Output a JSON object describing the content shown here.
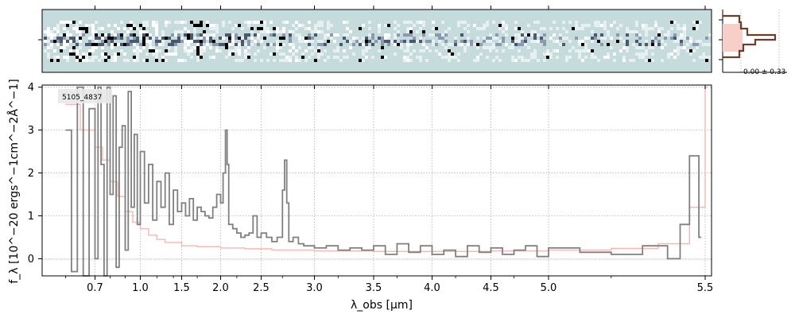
{
  "chart_data": [
    {
      "type": "heatmap",
      "panel": "2d-spectrum"
    },
    {
      "type": "line",
      "panel": "1d-spectrum",
      "annotation": "5105_4837",
      "xlabel": "λ_obs [μm]",
      "ylabel": "f_λ [10^−20 ergs^−1cm^−2Å^−1]",
      "xlim": [
        0.52,
        5.52
      ],
      "ylim": [
        -0.4,
        4.05
      ],
      "x_scale": "nonlinear",
      "x_ticks": [
        0.7,
        1.0,
        1.5,
        2.0,
        2.5,
        3.0,
        3.5,
        4.0,
        4.5,
        5.0,
        5.5
      ],
      "x_tick_labels": [
        "0.7",
        "1.0",
        "1.5",
        "2.0",
        "2.5",
        "3.0",
        "3.5",
        "4.0",
        "4.5",
        "5.0",
        "5.5"
      ],
      "y_ticks": [
        0,
        1,
        2,
        3,
        4
      ],
      "grid": true,
      "series": [
        {
          "role": "error",
          "color": "#f4b8b0",
          "x": [
            0.6,
            0.65,
            0.7,
            0.75,
            0.8,
            0.85,
            0.9,
            0.95,
            1.0,
            1.1,
            1.2,
            1.3,
            1.5,
            1.7,
            2.0,
            2.3,
            2.6,
            3.0,
            3.5,
            4.0,
            4.5,
            5.0,
            5.2,
            5.35,
            5.45,
            5.5
          ],
          "y": [
            3.6,
            3.0,
            2.6,
            2.3,
            1.8,
            1.45,
            1.1,
            0.85,
            0.7,
            0.55,
            0.45,
            0.38,
            0.3,
            0.28,
            0.25,
            0.23,
            0.2,
            0.18,
            0.17,
            0.17,
            0.18,
            0.2,
            0.24,
            0.35,
            1.2,
            4.0
          ]
        },
        {
          "role": "flux",
          "color": "#808080",
          "x": [
            0.6,
            0.62,
            0.64,
            0.66,
            0.68,
            0.7,
            0.72,
            0.74,
            0.76,
            0.78,
            0.8,
            0.82,
            0.84,
            0.86,
            0.88,
            0.9,
            0.92,
            0.94,
            0.96,
            0.98,
            1.0,
            1.05,
            1.1,
            1.15,
            1.2,
            1.25,
            1.3,
            1.35,
            1.4,
            1.45,
            1.5,
            1.55,
            1.6,
            1.65,
            1.7,
            1.75,
            1.8,
            1.85,
            1.9,
            1.95,
            2.0,
            2.03,
            2.06,
            2.08,
            2.1,
            2.15,
            2.2,
            2.25,
            2.3,
            2.35,
            2.4,
            2.45,
            2.5,
            2.55,
            2.6,
            2.65,
            2.7,
            2.72,
            2.74,
            2.76,
            2.8,
            2.85,
            2.9,
            3.0,
            3.1,
            3.2,
            3.3,
            3.4,
            3.5,
            3.6,
            3.7,
            3.8,
            3.9,
            4.0,
            4.1,
            4.2,
            4.3,
            4.4,
            4.5,
            4.6,
            4.7,
            4.8,
            4.9,
            5.0,
            5.1,
            5.2,
            5.3,
            5.38,
            5.42,
            5.45,
            5.48
          ],
          "y": [
            3.0,
            -0.3,
            4.0,
            -0.4,
            3.5,
            0.0,
            4.0,
            2.2,
            -0.4,
            4.0,
            1.5,
            3.8,
            -0.2,
            2.6,
            3.1,
            0.2,
            3.9,
            1.2,
            2.9,
            0.8,
            2.5,
            1.3,
            2.2,
            0.9,
            1.8,
            1.2,
            2.0,
            0.8,
            1.6,
            1.1,
            1.3,
            1.0,
            1.4,
            0.9,
            1.2,
            1.1,
            1.0,
            0.95,
            1.2,
            1.5,
            1.3,
            2.0,
            3.0,
            2.2,
            0.8,
            0.7,
            0.6,
            0.5,
            0.55,
            0.6,
            1.0,
            0.5,
            0.6,
            0.5,
            0.4,
            0.5,
            1.6,
            2.3,
            1.3,
            0.4,
            0.5,
            0.35,
            0.3,
            0.25,
            0.3,
            0.2,
            0.25,
            0.2,
            0.3,
            0.1,
            0.35,
            0.15,
            0.3,
            0.1,
            0.2,
            0.05,
            0.3,
            0.15,
            0.25,
            0.1,
            0.2,
            0.3,
            0.05,
            0.25,
            0.15,
            0.1,
            0.3,
            0.0,
            0.8,
            2.4,
            0.5
          ]
        }
      ]
    },
    {
      "type": "bar",
      "panel": "profile",
      "annotation": "0.00 ± 0.33"
    }
  ]
}
